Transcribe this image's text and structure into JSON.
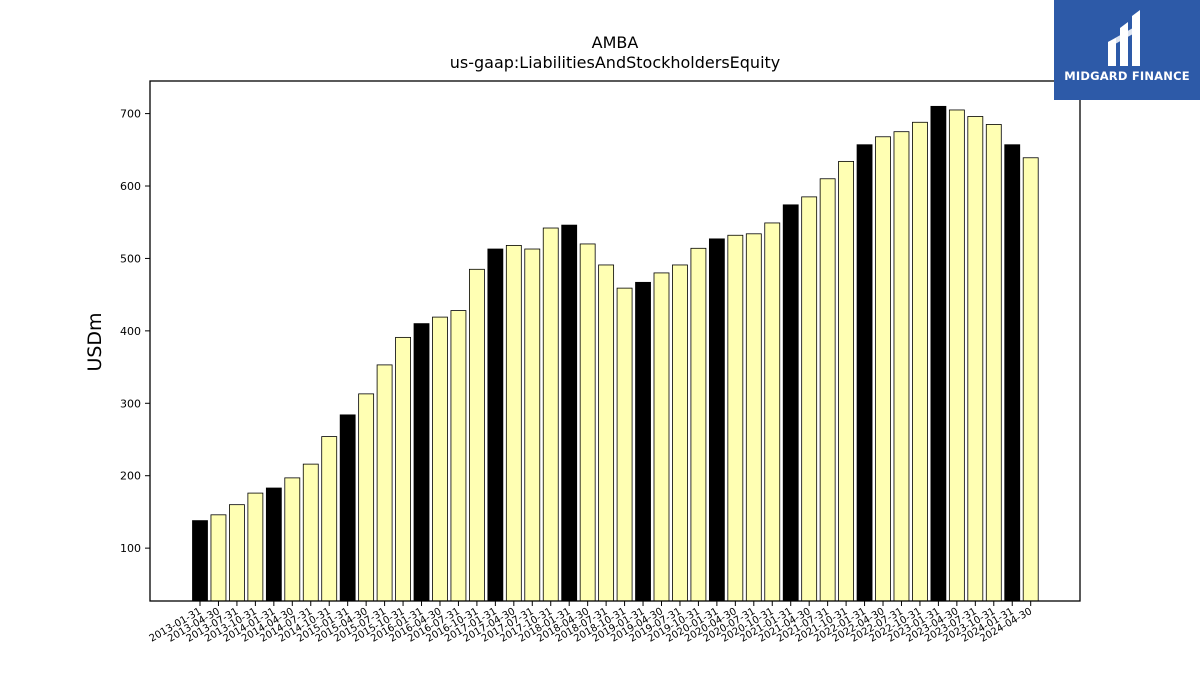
{
  "chart_data": {
    "type": "bar",
    "title": "AMBA",
    "subtitle": "us-gaap:LiabilitiesAndStockholdersEquity",
    "xlabel": "",
    "ylabel": "USDm",
    "ylim": [
      27,
      745
    ],
    "yticks": [
      100,
      200,
      300,
      400,
      500,
      600,
      700
    ],
    "grid": false,
    "categories": [
      "2013-01-31",
      "2013-04-30",
      "2013-07-31",
      "2013-10-31",
      "2014-01-31",
      "2014-04-30",
      "2014-07-31",
      "2014-10-31",
      "2015-01-31",
      "2015-04-30",
      "2015-07-31",
      "2015-10-31",
      "2016-01-31",
      "2016-04-30",
      "2016-07-31",
      "2016-10-31",
      "2017-01-31",
      "2017-04-30",
      "2017-07-31",
      "2017-10-31",
      "2018-01-31",
      "2018-04-30",
      "2018-07-31",
      "2018-10-31",
      "2019-01-31",
      "2019-04-30",
      "2019-07-31",
      "2019-10-31",
      "2020-01-31",
      "2020-04-30",
      "2020-07-31",
      "2020-10-31",
      "2021-01-31",
      "2021-04-30",
      "2021-07-31",
      "2021-10-31",
      "2022-01-31",
      "2022-04-30",
      "2022-07-31",
      "2022-10-31",
      "2023-01-31",
      "2023-04-30",
      "2023-07-31",
      "2023-10-31",
      "2024-01-31",
      "2024-04-30"
    ],
    "values": [
      138,
      146,
      160,
      176,
      183,
      197,
      216,
      254,
      284,
      313,
      353,
      391,
      410,
      419,
      428,
      485,
      513,
      518,
      513,
      542,
      546,
      520,
      491,
      459,
      467,
      480,
      491,
      514,
      527,
      532,
      534,
      549,
      574,
      585,
      610,
      634,
      657,
      668,
      675,
      688,
      710,
      705,
      696,
      685,
      657,
      639
    ],
    "colors": {
      "annual": "#000000",
      "quarterly": "#ffffb3",
      "edge": "#000000"
    },
    "annual_marker": "-01-31"
  },
  "logo": {
    "text": "MIDGARD FINANCE",
    "background": "#2d5aa8"
  }
}
